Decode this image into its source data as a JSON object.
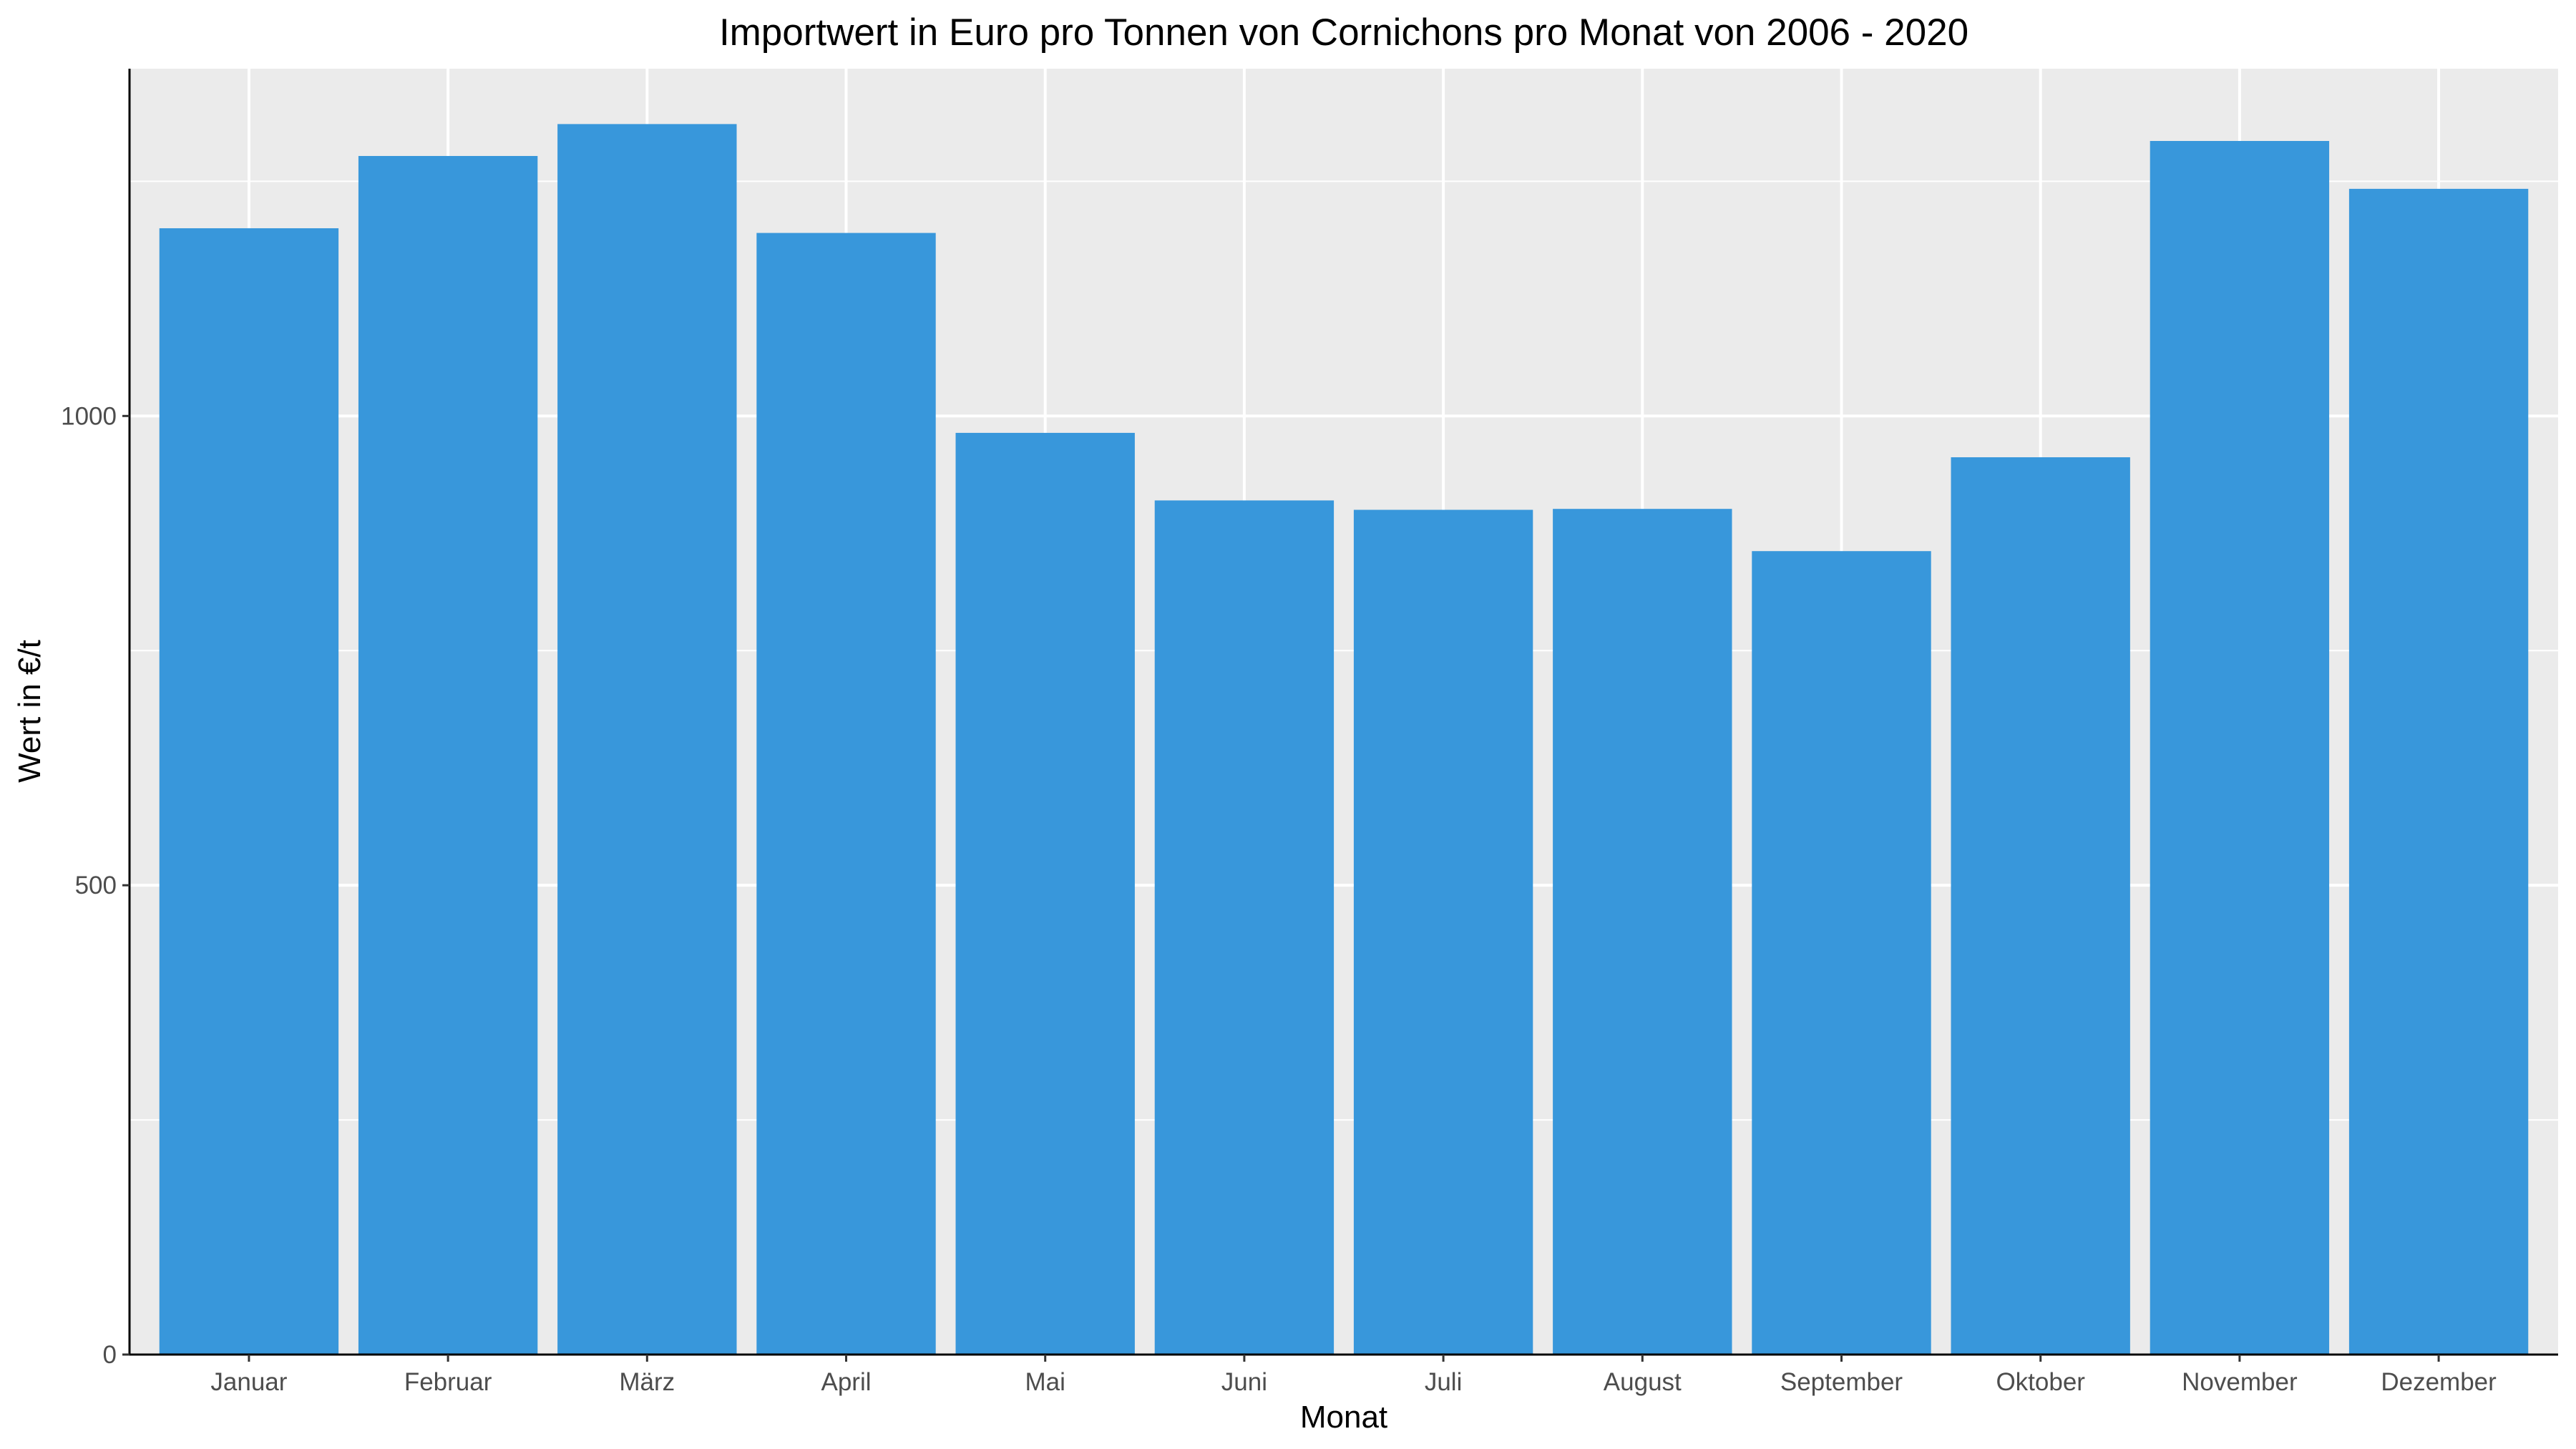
{
  "chart_data": {
    "type": "bar",
    "title": "Importwert in Euro pro Tonnen von Cornichons pro Monat von 2006 - 2020",
    "xlabel": "Monat",
    "ylabel": "Wert in €/t",
    "categories": [
      "Januar",
      "Februar",
      "März",
      "April",
      "Mai",
      "Juni",
      "Juli",
      "August",
      "September",
      "Oktober",
      "November",
      "Dezember"
    ],
    "values": [
      1200,
      1277,
      1311,
      1195,
      982,
      910,
      900,
      901,
      856,
      956,
      1293,
      1242
    ],
    "ylim": [
      0,
      1370
    ],
    "yticks": [
      0,
      500,
      1000
    ],
    "grid": true,
    "colors": {
      "bar": "#3897db",
      "panel_background": "#ebebeb",
      "grid": "#ffffff",
      "axis_line": "#000000",
      "tick_text": "#4d4d4d"
    }
  }
}
